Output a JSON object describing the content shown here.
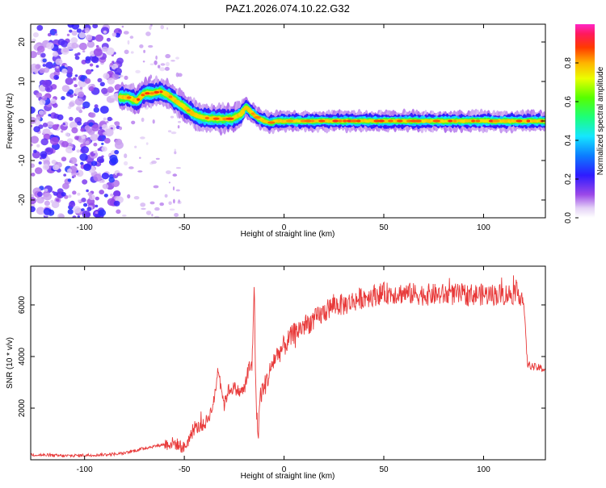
{
  "title": "PAZ1.2026.074.10.22.G32",
  "chart_data": [
    {
      "type": "heatmap",
      "title": "PAZ1.2026.074.10.22.G32",
      "xlabel": "Height of straight line (km)",
      "ylabel": "Frequency (Hz)",
      "xlim": [
        -127,
        131
      ],
      "ylim": [
        -24.5,
        24.5
      ],
      "x_ticks": [
        "-100",
        "-50",
        "0",
        "50",
        "100"
      ],
      "x_tick_values": [
        -100,
        -50,
        0,
        50,
        100
      ],
      "y_ticks": [
        "-20",
        "-10",
        "0",
        "10",
        "20"
      ],
      "y_tick_values": [
        -20,
        -10,
        0,
        10,
        20
      ],
      "colorbar": {
        "label": "Normalized spectral amplitude",
        "range": [
          0,
          1
        ],
        "ticks": [
          "0.0",
          "0.2",
          "0.4",
          "0.6",
          "0.8"
        ],
        "tick_values": [
          0,
          0.2,
          0.4,
          0.6,
          0.8
        ],
        "colormap": "gist_ncar-like: white, purple, blue, cyan, green, yellow, orange, red, magenta"
      },
      "ridge": {
        "description": "Dominant frequency ridge (peak amplitude) vs height",
        "x": [
          -82,
          -78,
          -74,
          -70,
          -66,
          -62,
          -58,
          -54,
          -50,
          -46,
          -42,
          -38,
          -34,
          -30,
          -26,
          -22,
          -19,
          -16,
          -13,
          -10,
          -7,
          -4,
          0,
          10,
          20,
          40,
          60,
          80,
          100,
          120,
          131
        ],
        "freq": [
          6,
          6,
          5,
          7,
          7,
          7.5,
          6.5,
          5,
          3.5,
          2,
          1,
          0.7,
          0.6,
          0.5,
          0.6,
          1.5,
          3.5,
          2,
          0.8,
          0,
          -0.5,
          0,
          0,
          0,
          0,
          0,
          0,
          0,
          0,
          0,
          0
        ],
        "peak_amplitude": 0.9
      },
      "noise_region": {
        "x_range": [
          -127,
          -82
        ],
        "freq_range": [
          -24.5,
          24.5
        ],
        "amplitude_range": [
          0.05,
          0.25
        ]
      }
    },
    {
      "type": "line",
      "xlabel": "Height of straight line (km)",
      "ylabel": "SNR (10 * v/v)",
      "xlim": [
        -127,
        131
      ],
      "ylim": [
        0,
        7500
      ],
      "x_ticks": [
        "-100",
        "-50",
        "0",
        "50",
        "100"
      ],
      "x_tick_values": [
        -100,
        -50,
        0,
        50,
        100
      ],
      "y_ticks": [
        "2000",
        "4000",
        "6000"
      ],
      "y_tick_values": [
        2000,
        4000,
        6000
      ],
      "color": "#e83a3a",
      "series": [
        {
          "x": [
            -127,
            -110,
            -90,
            -80,
            -70,
            -60,
            -55,
            -50,
            -45,
            -40,
            -37,
            -35,
            -33,
            -30,
            -28,
            -25,
            -22,
            -20,
            -18,
            -16,
            -15,
            -14,
            -13,
            -12,
            -10,
            -8,
            -5,
            0,
            5,
            10,
            15,
            20,
            25,
            30,
            40,
            50,
            60,
            70,
            80,
            90,
            100,
            110,
            118,
            120,
            121,
            122,
            125,
            131
          ],
          "y": [
            200,
            150,
            200,
            250,
            450,
            600,
            650,
            450,
            1200,
            1350,
            1800,
            2300,
            3600,
            2100,
            2700,
            2800,
            2600,
            2750,
            3400,
            3700,
            6900,
            2000,
            950,
            2500,
            2800,
            3200,
            3900,
            4400,
            4900,
            5200,
            5400,
            5700,
            6000,
            6000,
            6300,
            6450,
            6450,
            6400,
            6400,
            6400,
            6400,
            6400,
            6450,
            6200,
            5000,
            3700,
            3600,
            3500
          ]
        }
      ]
    }
  ]
}
